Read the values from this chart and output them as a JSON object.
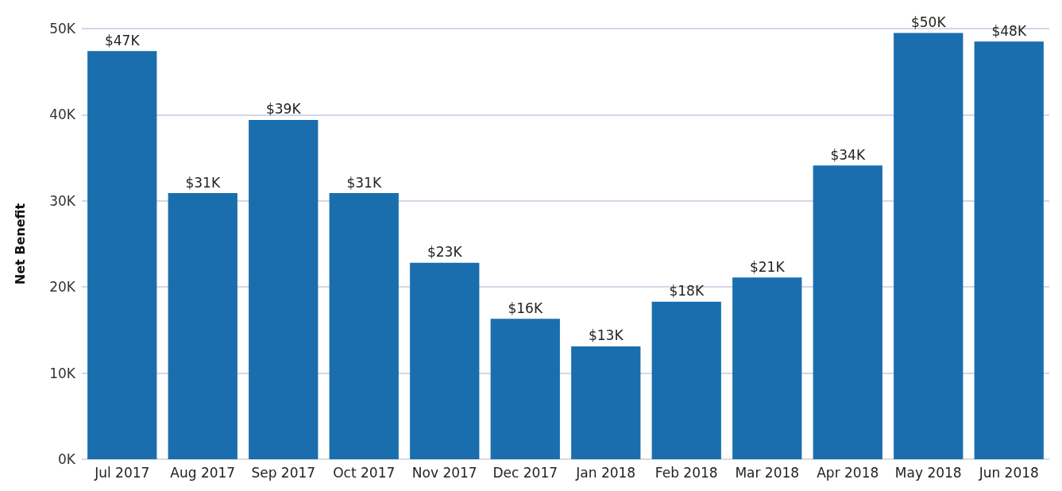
{
  "chart_data": {
    "type": "bar",
    "ylabel": "Net Benefit",
    "categories": [
      "Jul 2017",
      "Aug 2017",
      "Sep 2017",
      "Oct 2017",
      "Nov 2017",
      "Dec 2017",
      "Jan 2018",
      "Feb 2018",
      "Mar 2018",
      "Apr 2018",
      "May 2018",
      "Jun 2018"
    ],
    "values": [
      47400,
      30900,
      39400,
      30900,
      22800,
      16300,
      13100,
      18300,
      21100,
      34100,
      49500,
      48500
    ],
    "value_labels": [
      "$47K",
      "$31K",
      "$39K",
      "$31K",
      "$23K",
      "$16K",
      "$13K",
      "$18K",
      "$21K",
      "$34K",
      "$50K",
      "$48K"
    ],
    "color": "#1a6eae",
    "ylim": [
      0,
      50000
    ],
    "yticks": [
      {
        "value": 0,
        "label": "0K"
      },
      {
        "value": 10000,
        "label": "10K"
      },
      {
        "value": 20000,
        "label": "20K"
      },
      {
        "value": 30000,
        "label": "30K"
      },
      {
        "value": 40000,
        "label": "40K"
      },
      {
        "value": 50000,
        "label": "50K"
      }
    ],
    "grid": "y"
  }
}
